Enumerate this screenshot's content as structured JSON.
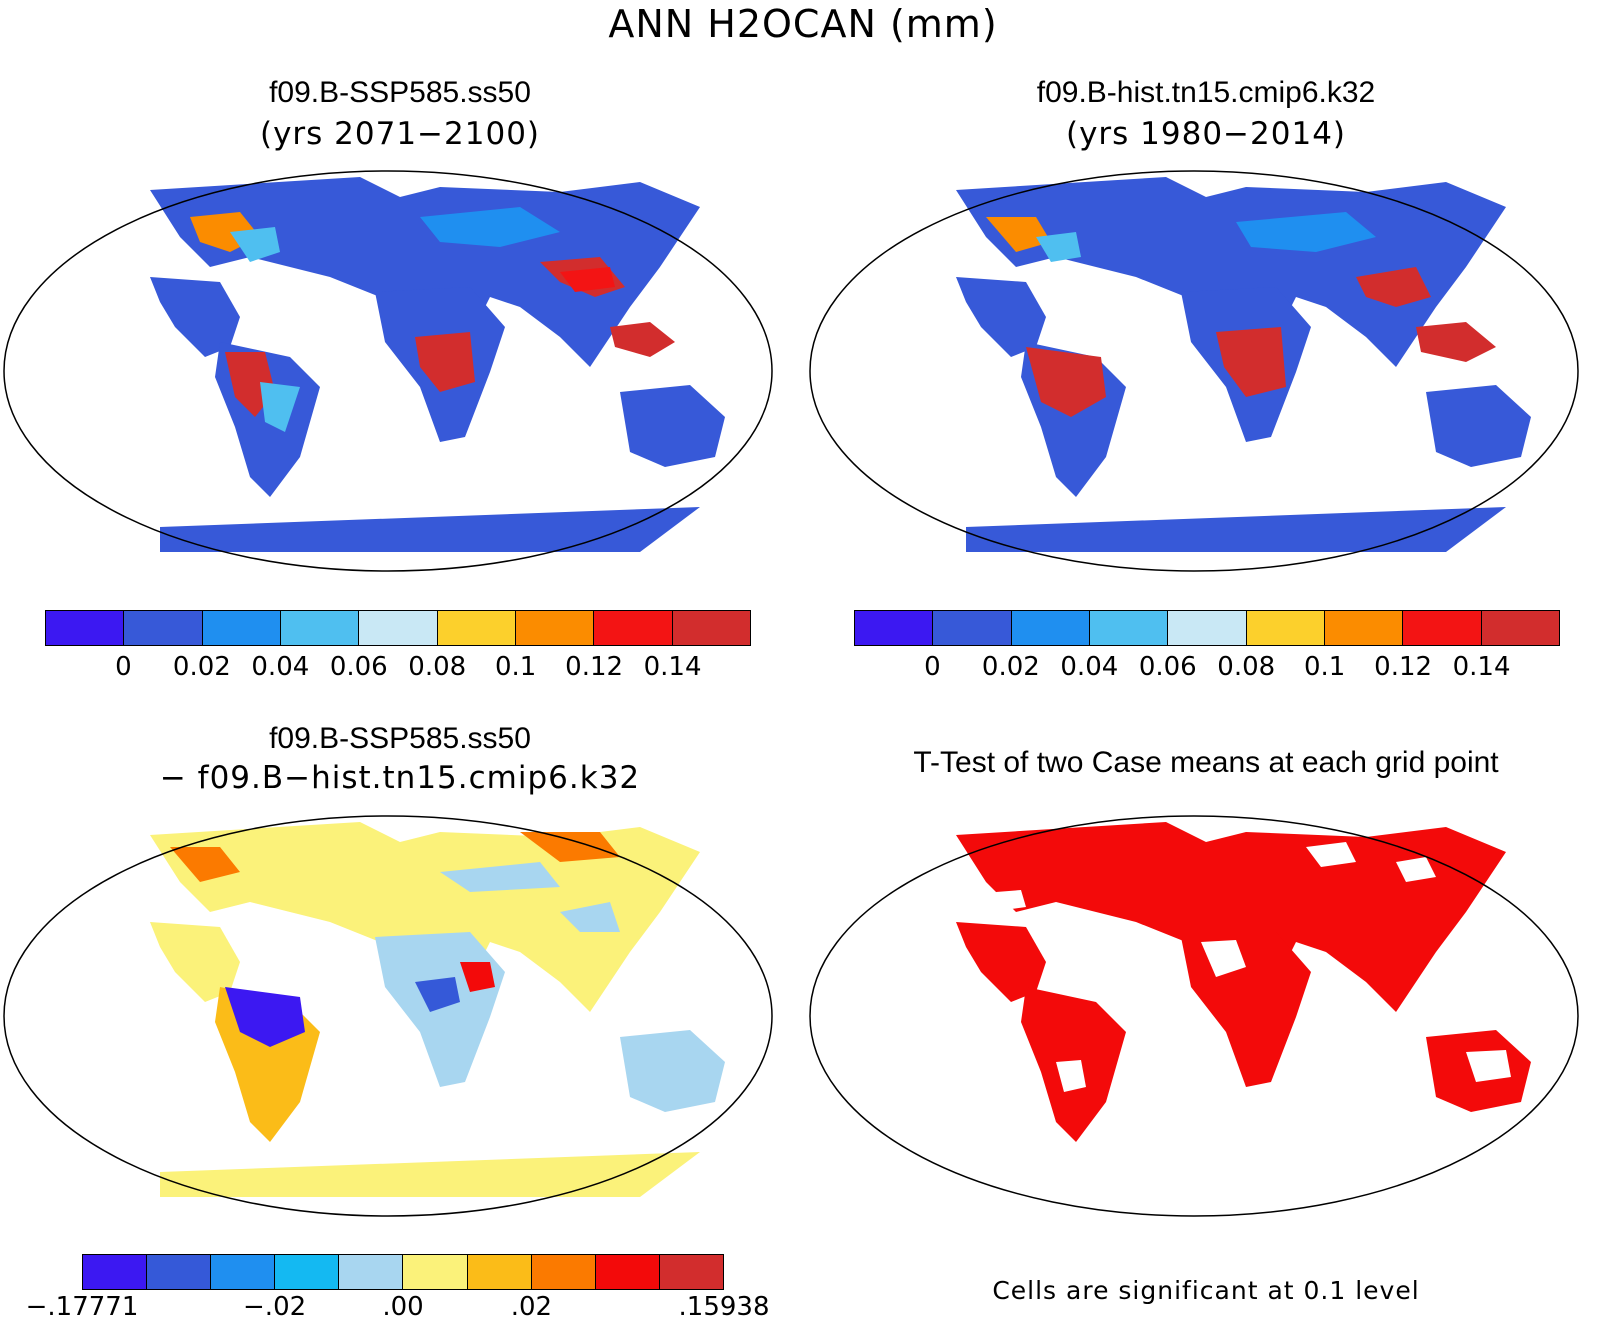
{
  "main_title": "ANN H2OCAN (mm)",
  "panels": {
    "top_left": {
      "title": "f09.B-SSP585.ss50",
      "subtitle": "(yrs 2071−2100)"
    },
    "top_right": {
      "title": "f09.B-hist.tn15.cmip6.k32",
      "subtitle": "(yrs 1980−2014)"
    },
    "bottom_left": {
      "title": "f09.B-SSP585.ss50",
      "subtitle": "− f09.B−hist.tn15.cmip6.k32"
    },
    "bottom_right": {
      "title": "T-Test of two Case means at each grid point",
      "footer": "Cells are significant at 0.1 level"
    }
  },
  "colorbar_abs": {
    "colors": [
      "#3c18f2",
      "#3759d8",
      "#1f8ff0",
      "#4fbff0",
      "#c9e8f5",
      "#fcd02c",
      "#fb8c00",
      "#f31414",
      "#d22d2d"
    ],
    "ticks": [
      "0",
      "0.02",
      "0.04",
      "0.06",
      "0.08",
      "0.1",
      "0.12",
      "0.14"
    ]
  },
  "colorbar_diff": {
    "colors": [
      "#3c18f2",
      "#3559d8",
      "#1f8ff0",
      "#14b9f2",
      "#a8d6f0",
      "#fbf27a",
      "#fbbc18",
      "#fb7a00",
      "#f30a0a",
      "#d22d2d"
    ],
    "ticks": [
      {
        "label": "−.17771",
        "boundary": 0
      },
      {
        "label": "−.02",
        "boundary": 3
      },
      {
        "label": ".00",
        "boundary": 5
      },
      {
        "label": ".02",
        "boundary": 7
      },
      {
        "label": ".15938",
        "boundary": 10
      }
    ]
  },
  "map_colors": {
    "ocean": "#ffffff",
    "coast": "#000000",
    "tl_base": "#3759d8",
    "tr_base": "#3759d8",
    "bl_base": "#fbf27a",
    "br_base": "#f30a0a"
  }
}
